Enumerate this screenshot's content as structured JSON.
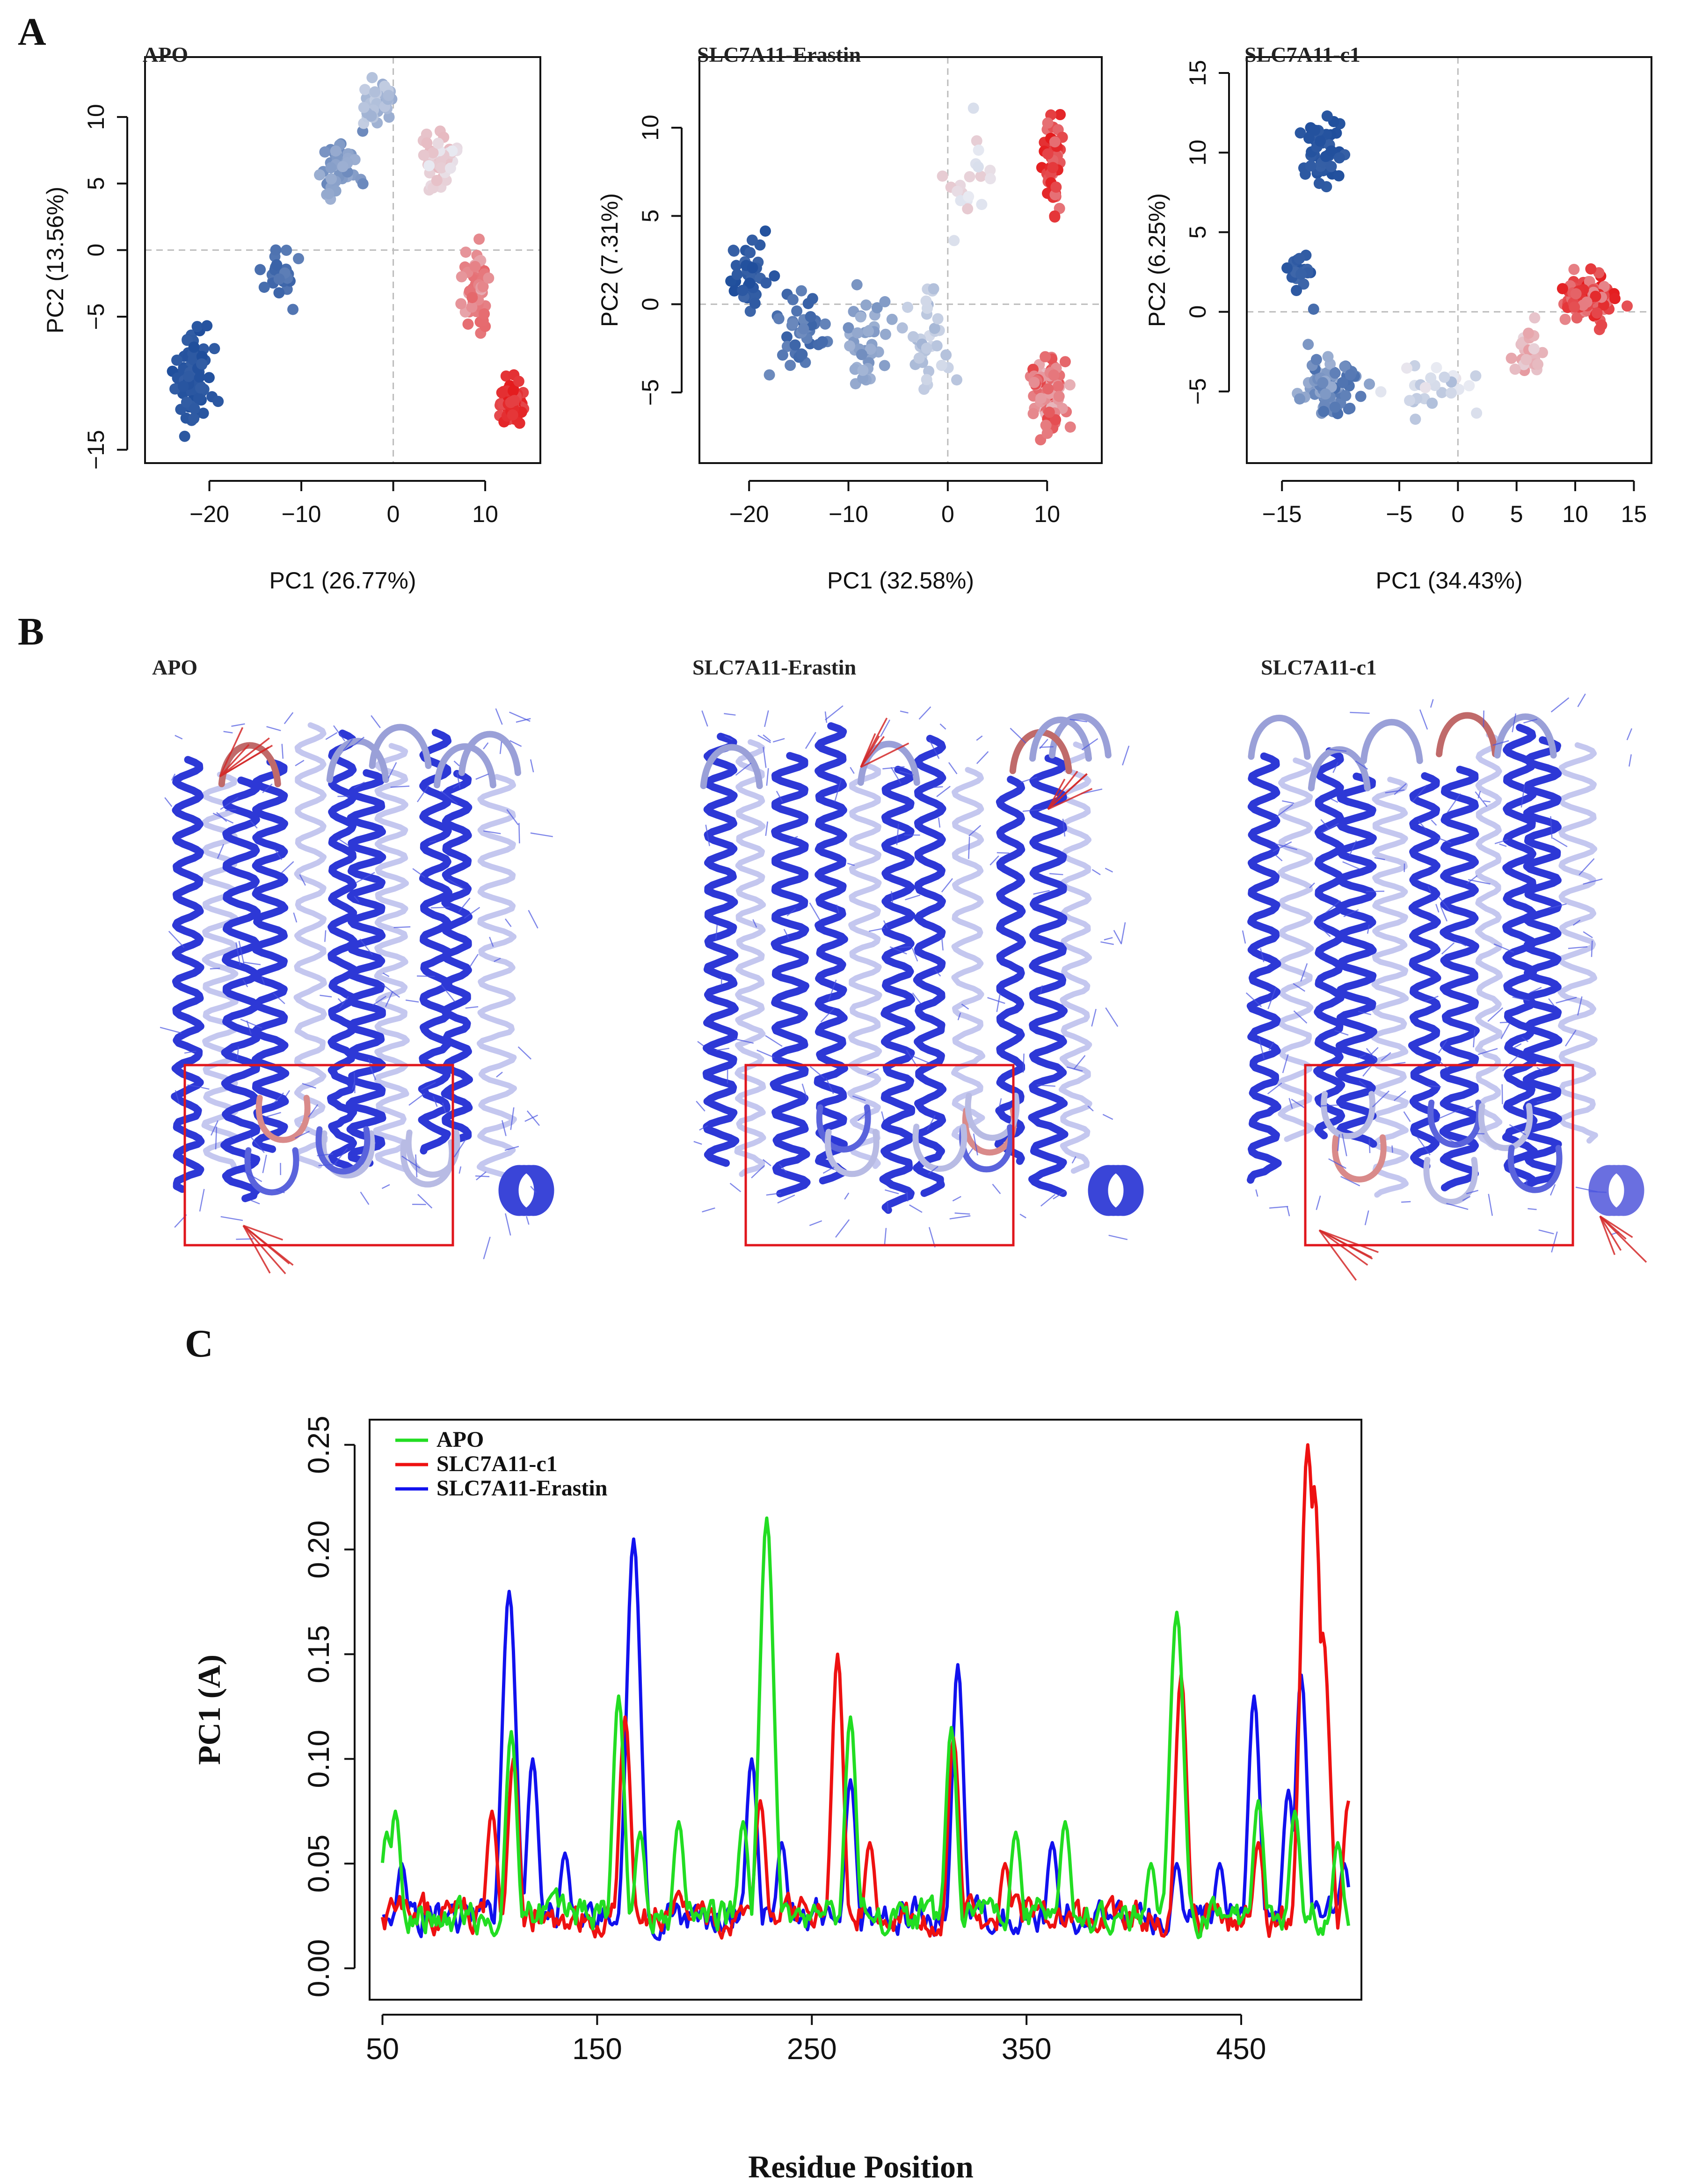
{
  "panels": {
    "A": "A",
    "B": "B",
    "C": "C"
  },
  "pca_titles": [
    "APO",
    "SLC7A11-Erastin",
    "SLC7A11-c1"
  ],
  "structure_titles": [
    "APO",
    "SLC7A11-Erastin",
    "SLC7A11-c1"
  ],
  "colors": {
    "state_low": "#1f4e9c",
    "state_mid": "#e8eaf2",
    "state_high": "#e41a1c",
    "ribbon": "#2b35d8",
    "highlight_box": "#e0161c",
    "APO": "#22dd22",
    "SLC7A11-c1": "#ee1111",
    "SLC7A11-Erastin": "#1111ee"
  },
  "chart_data": [
    {
      "type": "scatter",
      "title": "APO",
      "xlabel": "PC1 (26.77%)",
      "ylabel": "PC2 (13.56%)",
      "xlim": [
        -27,
        16
      ],
      "ylim": [
        -16,
        14.5
      ],
      "xticks": [
        -20,
        -10,
        0,
        10
      ],
      "yticks": [
        -15,
        -5,
        0,
        5,
        10
      ],
      "xtick_labels": [
        "−20",
        "−10",
        "0",
        "10"
      ],
      "ytick_labels": [
        "−15",
        "−5",
        "0",
        "5",
        "10"
      ],
      "color_scale": "blue to red by frame",
      "clusters": [
        {
          "cx": -22,
          "cy": -9.5,
          "sx": 2.0,
          "sy": 3.0,
          "n": 75,
          "t0": 0.0,
          "t1": 0.05
        },
        {
          "cx": -12.5,
          "cy": -1.5,
          "sx": 2.0,
          "sy": 2.2,
          "n": 25,
          "t0": 0.06,
          "t1": 0.16
        },
        {
          "cx": -6,
          "cy": 6,
          "sx": 1.8,
          "sy": 2.2,
          "n": 45,
          "t0": 0.18,
          "t1": 0.32
        },
        {
          "cx": -1.5,
          "cy": 11,
          "sx": 1.6,
          "sy": 1.5,
          "n": 35,
          "t0": 0.3,
          "t1": 0.42
        },
        {
          "cx": 5,
          "cy": 6.5,
          "sx": 1.8,
          "sy": 2.0,
          "n": 45,
          "t0": 0.5,
          "t1": 0.62
        },
        {
          "cx": 9,
          "cy": -3,
          "sx": 1.6,
          "sy": 2.5,
          "n": 50,
          "t0": 0.65,
          "t1": 0.82
        },
        {
          "cx": 13,
          "cy": -11.5,
          "sx": 1.2,
          "sy": 1.5,
          "n": 75,
          "t0": 0.88,
          "t1": 1.0
        }
      ]
    },
    {
      "type": "scatter",
      "title": "SLC7A11-Erastin",
      "xlabel": "PC1 (32.58%)",
      "ylabel": "PC2 (7.31%)",
      "xlim": [
        -25,
        15.5
      ],
      "ylim": [
        -9,
        14
      ],
      "xticks": [
        -20,
        -10,
        0,
        10
      ],
      "yticks": [
        -5,
        0,
        5,
        10
      ],
      "xtick_labels": [
        "−20",
        "−10",
        "0",
        "10"
      ],
      "ytick_labels": [
        "−5",
        "0",
        "5",
        "10"
      ],
      "color_scale": "blue to red by frame",
      "clusters": [
        {
          "cx": -20,
          "cy": 1.5,
          "sx": 1.8,
          "sy": 2.0,
          "n": 40,
          "t0": 0.0,
          "t1": 0.08
        },
        {
          "cx": -15,
          "cy": -1.5,
          "sx": 2.0,
          "sy": 1.8,
          "n": 40,
          "t0": 0.06,
          "t1": 0.2
        },
        {
          "cx": -8,
          "cy": -2,
          "sx": 2.0,
          "sy": 2.0,
          "n": 40,
          "t0": 0.2,
          "t1": 0.33
        },
        {
          "cx": -2,
          "cy": -2,
          "sx": 1.8,
          "sy": 2.0,
          "n": 35,
          "t0": 0.33,
          "t1": 0.45
        },
        {
          "cx": 2,
          "cy": 7,
          "sx": 2.0,
          "sy": 2.5,
          "n": 20,
          "t0": 0.45,
          "t1": 0.58
        },
        {
          "cx": 10.5,
          "cy": 8,
          "sx": 1.0,
          "sy": 2.5,
          "n": 55,
          "t0": 0.78,
          "t1": 1.0
        },
        {
          "cx": 10,
          "cy": -5,
          "sx": 1.6,
          "sy": 2.2,
          "n": 90,
          "t0": 0.6,
          "t1": 0.9
        }
      ]
    },
    {
      "type": "scatter",
      "title": "SLC7A11-c1",
      "xlabel": "PC1 (34.43%)",
      "ylabel": "PC2 (6.25%)",
      "xlim": [
        -18,
        16.5
      ],
      "ylim": [
        -9.5,
        16
      ],
      "xticks": [
        -15,
        -5,
        0,
        5,
        10,
        15
      ],
      "yticks": [
        -5,
        0,
        5,
        10,
        15
      ],
      "xtick_labels": [
        "−15",
        "−5",
        "0",
        "5",
        "10",
        "15"
      ],
      "ytick_labels": [
        "−5",
        "0",
        "5",
        "10",
        "15"
      ],
      "color_scale": "blue to red by frame",
      "clusters": [
        {
          "cx": -11.5,
          "cy": 10,
          "sx": 1.5,
          "sy": 2.3,
          "n": 50,
          "t0": 0.0,
          "t1": 0.06
        },
        {
          "cx": -13.5,
          "cy": 2.5,
          "sx": 0.8,
          "sy": 1.8,
          "n": 20,
          "t0": 0.02,
          "t1": 0.1
        },
        {
          "cx": -11,
          "cy": -4.5,
          "sx": 2.0,
          "sy": 1.6,
          "n": 90,
          "t0": 0.1,
          "t1": 0.32
        },
        {
          "cx": -2,
          "cy": -5,
          "sx": 3.0,
          "sy": 1.5,
          "n": 25,
          "t0": 0.35,
          "t1": 0.52
        },
        {
          "cx": 6,
          "cy": -2.5,
          "sx": 1.5,
          "sy": 1.5,
          "n": 25,
          "t0": 0.55,
          "t1": 0.7
        },
        {
          "cx": 11,
          "cy": 0.8,
          "sx": 1.8,
          "sy": 1.2,
          "n": 110,
          "t0": 0.72,
          "t1": 1.0
        }
      ]
    },
    {
      "type": "line",
      "xlabel": "Residue Position",
      "ylabel": "PC1 (A)",
      "xlim": [
        44,
        506
      ],
      "ylim": [
        -0.015,
        0.262
      ],
      "xticks": [
        50,
        150,
        250,
        350,
        450
      ],
      "yticks": [
        0.0,
        0.05,
        0.1,
        0.15,
        0.2,
        0.25
      ],
      "ytick_labels": [
        "0.00",
        "0.05",
        "0.10",
        "0.15",
        "0.20",
        "0.25"
      ],
      "x_range": [
        50,
        500
      ],
      "baseline_hint": 0.025,
      "legend_position": "top-left",
      "series": [
        {
          "name": "APO",
          "peaks": [
            [
              52,
              0.065
            ],
            [
              56,
              0.075
            ],
            [
              110,
              0.113
            ],
            [
              160,
              0.13
            ],
            [
              170,
              0.065
            ],
            [
              188,
              0.07
            ],
            [
              218,
              0.07
            ],
            [
              229,
              0.215
            ],
            [
              268,
              0.12
            ],
            [
              315,
              0.115
            ],
            [
              345,
              0.065
            ],
            [
              368,
              0.07
            ],
            [
              408,
              0.05
            ],
            [
              420,
              0.17
            ],
            [
              458,
              0.08
            ],
            [
              475,
              0.075
            ],
            [
              495,
              0.06
            ]
          ]
        },
        {
          "name": "SLC7A11-c1",
          "peaks": [
            [
              101,
              0.075
            ],
            [
              111,
              0.1
            ],
            [
              163,
              0.12
            ],
            [
              226,
              0.08
            ],
            [
              262,
              0.15
            ],
            [
              277,
              0.06
            ],
            [
              316,
              0.11
            ],
            [
              340,
              0.05
            ],
            [
              422,
              0.14
            ],
            [
              458,
              0.06
            ],
            [
              481,
              0.25
            ],
            [
              484,
              0.23
            ],
            [
              488,
              0.16
            ],
            [
              500,
              0.08
            ]
          ]
        },
        {
          "name": "SLC7A11-Erastin",
          "peaks": [
            [
              59,
              0.05
            ],
            [
              109,
              0.18
            ],
            [
              120,
              0.1
            ],
            [
              135,
              0.055
            ],
            [
              167,
              0.205
            ],
            [
              222,
              0.1
            ],
            [
              236,
              0.06
            ],
            [
              268,
              0.09
            ],
            [
              318,
              0.145
            ],
            [
              362,
              0.06
            ],
            [
              420,
              0.05
            ],
            [
              440,
              0.05
            ],
            [
              456,
              0.13
            ],
            [
              472,
              0.085
            ],
            [
              478,
              0.14
            ],
            [
              498,
              0.05
            ]
          ]
        }
      ]
    }
  ]
}
